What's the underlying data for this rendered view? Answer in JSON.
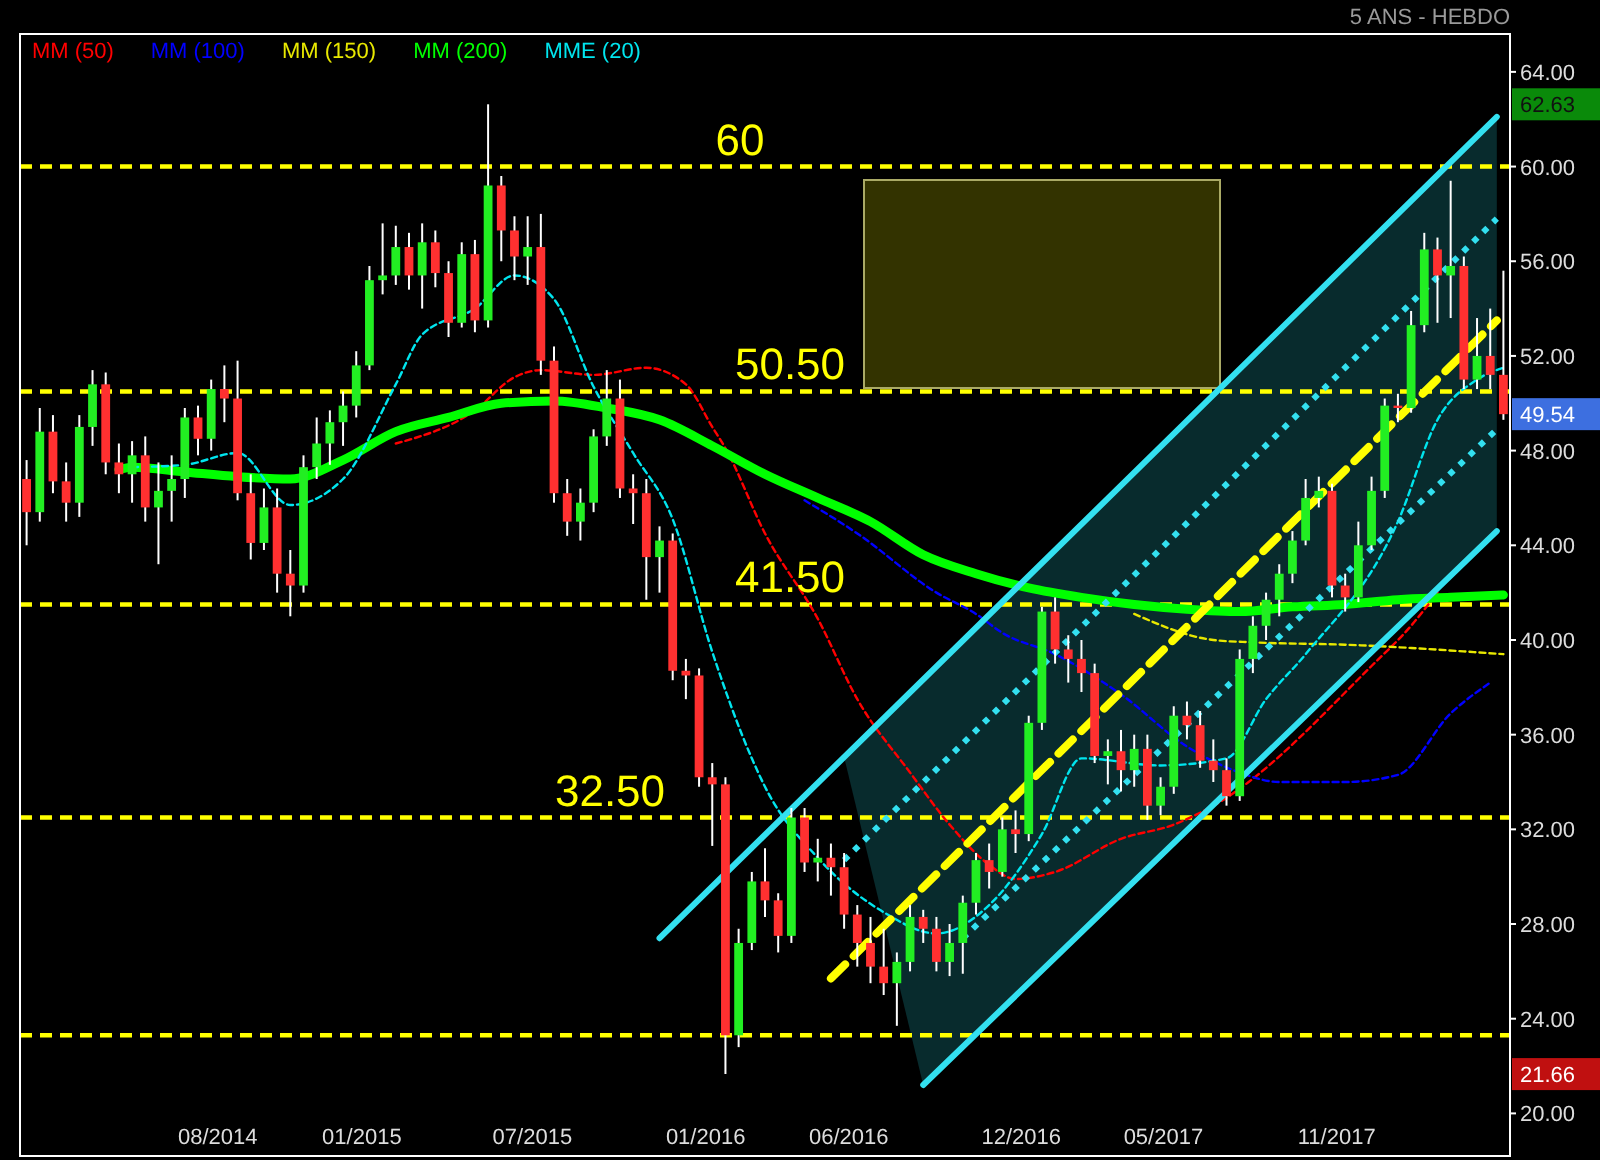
{
  "chart_data": {
    "type": "candlestick",
    "title": "5 ANS - HEBDO",
    "legend": "top left",
    "xlim": [
      "2014-01-03",
      "2018-05-04"
    ],
    "ylim": [
      18.2,
      65.6
    ],
    "xticks": [
      {
        "value": "2014-08-01",
        "label": "08/2014"
      },
      {
        "value": "2015-01-01",
        "label": "01/2015"
      },
      {
        "value": "2015-07-01",
        "label": "07/2015"
      },
      {
        "value": "2016-01-01",
        "label": "01/2016"
      },
      {
        "value": "2016-06-01",
        "label": "06/2016"
      },
      {
        "value": "2016-12-01",
        "label": "12/2016"
      },
      {
        "value": "2017-05-01",
        "label": "05/2017"
      },
      {
        "value": "2017-11-01",
        "label": "11/2017"
      }
    ],
    "yticks": [
      {
        "value": 20,
        "label": "20.00"
      },
      {
        "value": 24,
        "label": "24.00"
      },
      {
        "value": 28,
        "label": "28.00"
      },
      {
        "value": 32,
        "label": "32.00"
      },
      {
        "value": 36,
        "label": "36.00"
      },
      {
        "value": 40,
        "label": "40.00"
      },
      {
        "value": 44,
        "label": "44.00"
      },
      {
        "value": 48,
        "label": "48.00"
      },
      {
        "value": 52,
        "label": "52.00"
      },
      {
        "value": 56,
        "label": "56.00"
      },
      {
        "value": 60,
        "label": "60.00"
      },
      {
        "value": 64,
        "label": "64.00"
      }
    ],
    "ref_lines": [
      {
        "axis": "y",
        "value": 60,
        "label": "60",
        "color": "#ffff00",
        "line_style": "dashed"
      },
      {
        "axis": "y",
        "value": 50.5,
        "label": "50.50",
        "color": "#ffff00",
        "line_style": "dashed"
      },
      {
        "axis": "y",
        "value": 41.5,
        "label": "41.50",
        "color": "#ffff00",
        "line_style": "dashed"
      },
      {
        "axis": "y",
        "value": 32.5,
        "label": "32.50",
        "color": "#ffff00",
        "line_style": "dashed"
      },
      {
        "axis": "y",
        "value": 23.3,
        "label": null,
        "color": "#ffff00",
        "line_style": "dashed"
      }
    ],
    "annotations": [
      "62.63",
      "49.54",
      "21.66"
    ],
    "series": [
      {
        "x": [
          "2014-01-10",
          "2014-01-24",
          "2014-02-07",
          "2014-02-21",
          "2014-03-07",
          "2014-03-21",
          "2014-04-04",
          "2014-04-18",
          "2014-05-02",
          "2014-05-16",
          "2014-05-30",
          "2014-06-13",
          "2014-06-27",
          "2014-07-11",
          "2014-07-25",
          "2014-08-08",
          "2014-08-22",
          "2014-09-05",
          "2014-09-19",
          "2014-10-03",
          "2014-10-17",
          "2014-10-31",
          "2014-11-14",
          "2014-11-28",
          "2014-12-12",
          "2014-12-26",
          "2015-01-09",
          "2015-01-23",
          "2015-02-06",
          "2015-02-20",
          "2015-03-06",
          "2015-03-20",
          "2015-04-03",
          "2015-04-17",
          "2015-05-01",
          "2015-05-15",
          "2015-05-29",
          "2015-06-12",
          "2015-06-26",
          "2015-07-10",
          "2015-07-24",
          "2015-08-07",
          "2015-08-21",
          "2015-09-04",
          "2015-09-18",
          "2015-10-02",
          "2015-10-16",
          "2015-10-30",
          "2015-11-13",
          "2015-11-27",
          "2015-12-11",
          "2015-12-25",
          "2016-01-08",
          "2016-01-22",
          "2016-02-05",
          "2016-02-19",
          "2016-03-04",
          "2016-03-18",
          "2016-04-01",
          "2016-04-15",
          "2016-04-29",
          "2016-05-13",
          "2016-05-27",
          "2016-06-10",
          "2016-06-24",
          "2016-07-08",
          "2016-07-22",
          "2016-08-05",
          "2016-08-19",
          "2016-09-02",
          "2016-09-16",
          "2016-09-30",
          "2016-10-14",
          "2016-10-28",
          "2016-11-11",
          "2016-11-25",
          "2016-12-09",
          "2016-12-23",
          "2017-01-06",
          "2017-01-20",
          "2017-02-03",
          "2017-02-17",
          "2017-03-03",
          "2017-03-17",
          "2017-03-31",
          "2017-04-14",
          "2017-04-28",
          "2017-05-12",
          "2017-05-26",
          "2017-06-09",
          "2017-06-23",
          "2017-07-07",
          "2017-07-21",
          "2017-08-04",
          "2017-08-18",
          "2017-09-01",
          "2017-09-15",
          "2017-09-29",
          "2017-10-13",
          "2017-10-27",
          "2017-11-10",
          "2017-11-24",
          "2017-12-08",
          "2017-12-22",
          "2018-01-05",
          "2018-01-19",
          "2018-02-02",
          "2018-02-16",
          "2018-03-02",
          "2018-03-16",
          "2018-03-30",
          "2018-04-13",
          "2018-04-27"
        ],
        "ohlc": [
          [
            46.8,
            47.6,
            44.0,
            45.4
          ],
          [
            45.4,
            49.8,
            45.0,
            48.8
          ],
          [
            48.8,
            49.5,
            46.2,
            46.7
          ],
          [
            46.7,
            47.5,
            45.0,
            45.8
          ],
          [
            45.8,
            49.5,
            45.2,
            49.0
          ],
          [
            49.0,
            51.4,
            48.2,
            50.8
          ],
          [
            50.8,
            51.3,
            47.0,
            47.5
          ],
          [
            47.5,
            48.3,
            46.2,
            47.0
          ],
          [
            47.0,
            48.4,
            45.8,
            47.8
          ],
          [
            47.8,
            48.6,
            45.0,
            45.6
          ],
          [
            45.6,
            47.5,
            43.2,
            46.3
          ],
          [
            46.3,
            47.8,
            45.0,
            46.8
          ],
          [
            46.8,
            49.8,
            46.0,
            49.4
          ],
          [
            49.4,
            49.9,
            47.8,
            48.5
          ],
          [
            48.5,
            51.0,
            48.0,
            50.6
          ],
          [
            50.6,
            51.6,
            49.2,
            50.2
          ],
          [
            50.2,
            51.8,
            45.9,
            46.2
          ],
          [
            46.2,
            47.0,
            43.4,
            44.1
          ],
          [
            44.1,
            46.4,
            43.8,
            45.6
          ],
          [
            45.6,
            46.4,
            42.0,
            42.8
          ],
          [
            42.8,
            43.8,
            41.0,
            42.3
          ],
          [
            42.3,
            47.8,
            42.0,
            47.3
          ],
          [
            47.3,
            49.4,
            46.8,
            48.3
          ],
          [
            48.3,
            49.7,
            47.4,
            49.2
          ],
          [
            49.2,
            50.5,
            48.2,
            49.9
          ],
          [
            49.9,
            52.2,
            49.4,
            51.6
          ],
          [
            51.6,
            55.8,
            51.4,
            55.2
          ],
          [
            55.2,
            57.6,
            54.6,
            55.4
          ],
          [
            55.4,
            57.5,
            55.0,
            56.6
          ],
          [
            56.6,
            57.2,
            54.8,
            55.4
          ],
          [
            55.4,
            57.6,
            54.0,
            56.8
          ],
          [
            56.8,
            57.3,
            54.9,
            55.5
          ],
          [
            55.5,
            56.0,
            52.8,
            53.4
          ],
          [
            53.4,
            56.8,
            53.2,
            56.3
          ],
          [
            56.3,
            56.9,
            53.0,
            53.5
          ],
          [
            53.5,
            62.63,
            53.2,
            59.2
          ],
          [
            59.2,
            59.6,
            56.0,
            57.3
          ],
          [
            57.3,
            57.9,
            55.2,
            56.2
          ],
          [
            56.2,
            57.9,
            55.0,
            56.6
          ],
          [
            56.6,
            58.0,
            51.2,
            51.8
          ],
          [
            51.8,
            52.4,
            45.8,
            46.2
          ],
          [
            46.2,
            46.8,
            44.4,
            45.0
          ],
          [
            45.0,
            46.4,
            44.2,
            45.8
          ],
          [
            45.8,
            48.9,
            45.4,
            48.6
          ],
          [
            48.6,
            51.4,
            48.2,
            50.2
          ],
          [
            50.2,
            51.0,
            46.0,
            46.4
          ],
          [
            46.4,
            47.0,
            44.9,
            46.2
          ],
          [
            46.2,
            46.8,
            41.7,
            43.5
          ],
          [
            43.5,
            44.8,
            42.0,
            44.2
          ],
          [
            44.2,
            44.5,
            38.3,
            38.7
          ],
          [
            38.7,
            39.2,
            37.5,
            38.5
          ],
          [
            38.5,
            38.8,
            33.8,
            34.2
          ],
          [
            34.2,
            34.8,
            31.3,
            33.9
          ],
          [
            33.9,
            34.2,
            21.66,
            23.3
          ],
          [
            23.3,
            27.8,
            22.8,
            27.2
          ],
          [
            27.2,
            30.2,
            26.9,
            29.8
          ],
          [
            29.8,
            31.2,
            28.3,
            29.0
          ],
          [
            29.0,
            29.3,
            26.8,
            27.5
          ],
          [
            27.5,
            32.9,
            27.2,
            32.5
          ],
          [
            32.5,
            32.9,
            30.2,
            30.6
          ],
          [
            30.6,
            31.6,
            29.8,
            30.8
          ],
          [
            30.8,
            31.4,
            29.2,
            30.4
          ],
          [
            30.4,
            31.0,
            27.8,
            28.4
          ],
          [
            28.4,
            28.8,
            26.2,
            27.2
          ],
          [
            27.2,
            28.3,
            25.5,
            26.2
          ],
          [
            26.2,
            27.8,
            25.0,
            25.5
          ],
          [
            25.5,
            26.8,
            23.7,
            26.4
          ],
          [
            26.4,
            28.8,
            26.0,
            28.3
          ],
          [
            28.3,
            28.6,
            27.2,
            27.8
          ],
          [
            27.8,
            28.3,
            26.0,
            26.4
          ],
          [
            26.4,
            28.0,
            25.8,
            27.2
          ],
          [
            27.2,
            29.2,
            25.9,
            28.9
          ],
          [
            28.9,
            31.0,
            28.4,
            30.7
          ],
          [
            30.7,
            31.4,
            29.5,
            30.2
          ],
          [
            30.2,
            32.5,
            30.0,
            32.0
          ],
          [
            32.0,
            32.8,
            31.0,
            31.8
          ],
          [
            31.8,
            36.8,
            31.5,
            36.5
          ],
          [
            36.5,
            41.4,
            36.2,
            41.2
          ],
          [
            41.2,
            41.8,
            39.0,
            39.6
          ],
          [
            39.6,
            40.2,
            38.2,
            39.2
          ],
          [
            39.2,
            40.0,
            37.8,
            38.6
          ],
          [
            38.6,
            39.0,
            34.8,
            35.1
          ],
          [
            35.1,
            35.8,
            33.9,
            35.3
          ],
          [
            35.3,
            36.2,
            33.6,
            34.5
          ],
          [
            34.5,
            36.0,
            33.8,
            35.4
          ],
          [
            35.4,
            36.0,
            32.4,
            33.0
          ],
          [
            33.0,
            34.2,
            32.6,
            33.8
          ],
          [
            33.8,
            37.2,
            33.5,
            36.8
          ],
          [
            36.8,
            37.4,
            35.8,
            36.4
          ],
          [
            36.4,
            37.0,
            34.6,
            34.9
          ],
          [
            34.9,
            35.8,
            34.0,
            34.5
          ],
          [
            34.5,
            35.0,
            33.0,
            33.4
          ],
          [
            33.4,
            39.6,
            33.2,
            39.2
          ],
          [
            39.2,
            41.0,
            38.6,
            40.6
          ],
          [
            40.6,
            42.0,
            40.0,
            41.7
          ],
          [
            41.7,
            43.2,
            41.0,
            42.8
          ],
          [
            42.8,
            44.6,
            42.4,
            44.2
          ],
          [
            44.2,
            46.8,
            44.0,
            46.0
          ],
          [
            46.0,
            46.9,
            45.6,
            46.3
          ],
          [
            46.3,
            46.6,
            41.8,
            42.3
          ],
          [
            42.3,
            42.8,
            41.2,
            41.8
          ],
          [
            41.8,
            45.0,
            41.6,
            44.0
          ],
          [
            44.0,
            46.9,
            43.8,
            46.3
          ],
          [
            46.3,
            50.2,
            46.0,
            49.9
          ],
          [
            49.9,
            50.4,
            49.2,
            49.8
          ],
          [
            49.8,
            53.9,
            49.6,
            53.3
          ],
          [
            53.3,
            57.2,
            53.0,
            56.5
          ],
          [
            56.5,
            57.0,
            53.4,
            55.4
          ],
          [
            55.4,
            59.4,
            53.6,
            55.8
          ],
          [
            55.8,
            56.2,
            50.6,
            51.0
          ],
          [
            51.0,
            53.6,
            50.6,
            52.0
          ],
          [
            52.0,
            54.0,
            50.6,
            51.2
          ],
          [
            51.2,
            55.6,
            49.3,
            49.54
          ]
        ]
      },
      {
        "type": "line",
        "name": "MM (50)",
        "color": "#ff0000",
        "line_style": "dashed",
        "x": [
          "2015-02-06",
          "2015-05-01",
          "2015-06-12",
          "2015-07-10",
          "2015-09-04",
          "2015-10-30",
          "2015-12-11",
          "2016-01-08",
          "2016-01-22",
          "2016-03-04",
          "2016-04-29",
          "2016-06-10",
          "2016-08-05",
          "2016-09-16",
          "2016-10-28",
          "2016-11-25",
          "2017-01-06",
          "2017-03-17",
          "2017-05-12",
          "2017-06-23",
          "2017-12-08",
          "2018-01-19",
          "2018-02-16"
        ],
        "values": [
          48.3,
          49.7,
          51.1,
          51.4,
          51.2,
          51.5,
          50.8,
          49.0,
          48.1,
          44.5,
          40.9,
          37.5,
          34.4,
          32.2,
          30.5,
          29.9,
          30.2,
          31.6,
          32.2,
          33.0,
          38.9,
          40.6,
          42.0
        ]
      },
      {
        "type": "line",
        "name": "MM (100)",
        "color": "#0000ff",
        "line_style": "dashed",
        "x": [
          "2016-04-15",
          "2016-06-10",
          "2016-09-02",
          "2016-10-14",
          "2016-11-11",
          "2017-01-06",
          "2017-03-17",
          "2017-05-26",
          "2017-07-21",
          "2017-09-01",
          "2017-11-10",
          "2018-01-05",
          "2018-03-02",
          "2018-04-13"
        ],
        "values": [
          45.9,
          44.5,
          42.0,
          41.1,
          40.3,
          39.4,
          37.7,
          35.5,
          34.4,
          34.0,
          34.0,
          34.3,
          36.9,
          38.2
        ]
      },
      {
        "type": "line",
        "name": "MM (150)",
        "color": "#e8e800",
        "line_style": "dashed",
        "x": [
          "2017-03-31",
          "2017-06-23",
          "2017-08-04",
          "2017-11-10",
          "2018-04-27"
        ],
        "values": [
          41.1,
          40.0,
          39.9,
          39.8,
          39.4
        ]
      },
      {
        "type": "line",
        "name": "MM (200)",
        "color": "#00ff00",
        "x": [
          "2014-04-18",
          "2014-05-02",
          "2014-06-27",
          "2014-08-22",
          "2014-10-17",
          "2014-12-12",
          "2015-02-06",
          "2015-04-03",
          "2015-05-29",
          "2015-07-24",
          "2015-09-18",
          "2015-11-13",
          "2016-01-08",
          "2016-03-04",
          "2016-04-29",
          "2016-06-24",
          "2016-08-19",
          "2016-10-14",
          "2016-12-09",
          "2017-02-03",
          "2017-03-31",
          "2017-05-26",
          "2017-07-21",
          "2017-09-15",
          "2017-11-10",
          "2018-01-05",
          "2018-03-02",
          "2018-04-27"
        ],
        "values": [
          47.2,
          47.3,
          47.1,
          46.9,
          46.8,
          47.6,
          48.8,
          49.4,
          50.0,
          50.1,
          49.8,
          49.3,
          48.2,
          47.0,
          46.0,
          45.0,
          43.6,
          42.8,
          42.2,
          41.8,
          41.5,
          41.3,
          41.2,
          41.4,
          41.5,
          41.7,
          41.8,
          41.9
        ]
      },
      {
        "type": "line",
        "name": "MME (20)",
        "color": "#00e5ee",
        "line_style": "dashed",
        "x": [
          "2014-05-02",
          "2014-06-27",
          "2014-08-22",
          "2014-10-17",
          "2014-12-12",
          "2015-02-06",
          "2015-03-06",
          "2015-05-01",
          "2015-06-12",
          "2015-07-24",
          "2015-09-04",
          "2015-10-16",
          "2015-11-27",
          "2016-01-08",
          "2016-02-19",
          "2016-03-04",
          "2016-04-29",
          "2016-07-08",
          "2016-09-02",
          "2016-10-28",
          "2016-12-23",
          "2017-02-03",
          "2017-04-28",
          "2017-07-07",
          "2017-08-18",
          "2017-09-29",
          "2018-01-05",
          "2018-02-16",
          "2018-03-30",
          "2018-04-27"
        ],
        "values": [
          47.3,
          47.4,
          47.9,
          45.7,
          46.8,
          50.8,
          52.9,
          54.0,
          55.4,
          54.4,
          50.7,
          47.9,
          45.1,
          39.5,
          35.0,
          33.8,
          30.8,
          28.5,
          27.6,
          28.8,
          31.8,
          35.0,
          34.7,
          35.0,
          37.5,
          39.4,
          45.0,
          49.3,
          51.0,
          51.5
        ]
      },
      {
        "type": "line",
        "color": "#33e0f0",
        "x": [
          "2015-11-13",
          "2018-04-20"
        ],
        "values": [
          27.4,
          62.1
        ]
      },
      {
        "type": "line",
        "color": "#33e0f0",
        "x": [
          "2016-08-19",
          "2018-04-20"
        ],
        "values": [
          21.2,
          44.6
        ]
      },
      {
        "type": "line",
        "color": "#33e0f0",
        "line_style": "dotted",
        "x": [
          "2016-05-27",
          "2018-04-20"
        ],
        "values": [
          30.7,
          57.8
        ]
      },
      {
        "type": "line",
        "color": "#33e0f0",
        "line_style": "dotted",
        "x": [
          "2016-09-30",
          "2018-04-20"
        ],
        "values": [
          27.4,
          48.9
        ]
      },
      {
        "type": "line",
        "color": "#ffff00",
        "line_style": "dashed",
        "x": [
          "2016-05-13",
          "2018-04-20"
        ],
        "values": [
          25.7,
          53.5
        ]
      }
    ]
  }
}
